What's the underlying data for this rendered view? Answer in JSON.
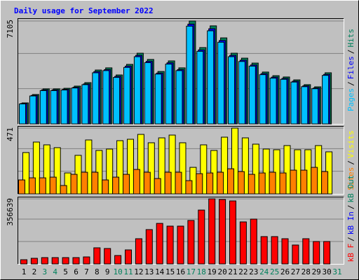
{
  "title": "Daily usage for September 2022",
  "legend_separator": "/",
  "chart_data": [
    {
      "type": "bar",
      "series": [
        {
          "name": "Pages",
          "color": "#00c0ff",
          "values": [
            1380,
            1930,
            2300,
            2300,
            2340,
            2480,
            2710,
            3530,
            3680,
            3210,
            3900,
            4640,
            4230,
            3440,
            4130,
            3680,
            6750,
            5010,
            6430,
            5640,
            4640,
            4310,
            3990,
            3400,
            3160,
            3080,
            2890,
            2570,
            2430,
            3350,
            null
          ]
        },
        {
          "name": "Files",
          "color": "#0000ff",
          "values": [
            1410,
            1970,
            2350,
            2350,
            2390,
            2530,
            2760,
            3610,
            3750,
            3280,
            3990,
            4730,
            4320,
            3510,
            4220,
            3750,
            6890,
            5110,
            6570,
            5760,
            4730,
            4400,
            4070,
            3470,
            3230,
            3140,
            2950,
            2630,
            2480,
            3420,
            null
          ]
        },
        {
          "name": "Hits",
          "color": "#00805c",
          "values": [
            1450,
            2030,
            2420,
            2420,
            2460,
            2610,
            2850,
            3720,
            3870,
            3380,
            4110,
            4880,
            4450,
            3620,
            4350,
            3870,
            7105,
            5270,
            6770,
            5940,
            4880,
            4540,
            4200,
            3580,
            3330,
            3240,
            3040,
            2710,
            2560,
            3530,
            null
          ]
        }
      ],
      "ylim": [
        0,
        7105
      ],
      "yticks": [
        7105
      ],
      "grid": true
    },
    {
      "type": "bar",
      "series": [
        {
          "name": "Sites",
          "color": "#ff8000",
          "values": [
            100,
            115,
            115,
            120,
            60,
            140,
            155,
            155,
            100,
            120,
            140,
            175,
            155,
            110,
            155,
            155,
            95,
            145,
            150,
            155,
            180,
            160,
            140,
            150,
            155,
            150,
            170,
            170,
            190,
            160,
            null
          ]
        },
        {
          "name": "Visits",
          "color": "#ffff00",
          "values": [
            296,
            371,
            351,
            331,
            150,
            276,
            386,
            311,
            321,
            381,
            391,
            426,
            366,
            401,
            421,
            366,
            190,
            351,
            311,
            406,
            471,
            401,
            356,
            321,
            316,
            346,
            316,
            316,
            346,
            301,
            null
          ]
        }
      ],
      "ylim": [
        0,
        471
      ],
      "yticks": [
        471
      ],
      "grid": true
    },
    {
      "type": "bar",
      "series": [
        {
          "name": "kB F",
          "color": "#ff0000",
          "values": [
            23000,
            30700,
            34500,
            34500,
            34500,
            34500,
            38300,
            88200,
            84400,
            46000,
            76700,
            138000,
            188000,
            222000,
            207000,
            207000,
            238000,
            295000,
            356639,
            352800,
            345100,
            230100,
            245400,
            149600,
            149600,
            138000,
            103500,
            138000,
            122700,
            122700,
            null
          ]
        }
      ],
      "legend_extra": [
        {
          "text": "kB In",
          "color": "#0000ff"
        },
        {
          "text": "kB Out",
          "color": "#00805c"
        }
      ],
      "ylim": [
        0,
        356639
      ],
      "yticks": [
        356639
      ],
      "grid": true,
      "categories": [
        "1",
        "2",
        "3",
        "4",
        "5",
        "6",
        "7",
        "8",
        "9",
        "10",
        "11",
        "12",
        "13",
        "14",
        "15",
        "16",
        "17",
        "18",
        "19",
        "20",
        "21",
        "22",
        "23",
        "24",
        "25",
        "26",
        "27",
        "28",
        "29",
        "30",
        "31"
      ],
      "category_colors": [
        "#000000",
        "#000000",
        "#00805c",
        "#00805c",
        "#000000",
        "#000000",
        "#000000",
        "#000000",
        "#000000",
        "#00805c",
        "#00805c",
        "#000000",
        "#000000",
        "#000000",
        "#000000",
        "#000000",
        "#00805c",
        "#00805c",
        "#000000",
        "#000000",
        "#000000",
        "#000000",
        "#000000",
        "#00805c",
        "#00805c",
        "#000000",
        "#000000",
        "#000000",
        "#000000",
        "#000000",
        "#00805c"
      ]
    }
  ]
}
